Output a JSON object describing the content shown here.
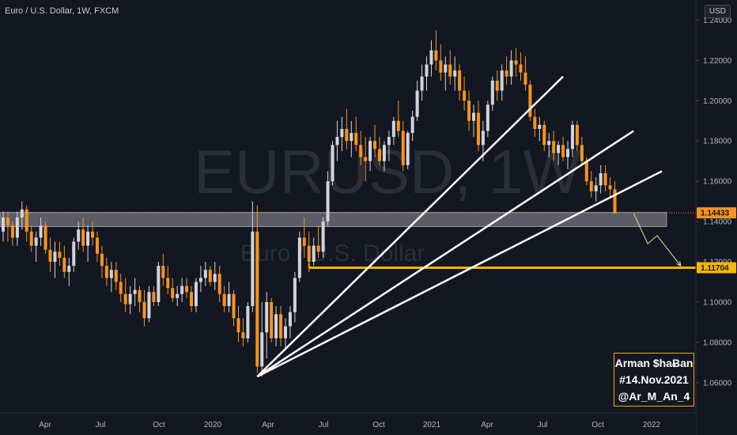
{
  "header": {
    "symbol_title": "Euro / U.S. Dollar, 1W, FXCM",
    "currency_button": "USD"
  },
  "watermark": {
    "main": "EURUSD, 1W",
    "sub": "Euro / U.S. Dollar"
  },
  "signature": {
    "line1": "Arman $haɃan",
    "line2": "#14.Nov.2021",
    "line3": "@Ar_M_An_4"
  },
  "colors": {
    "background": "#131722",
    "up_candle": "#d1d4dc",
    "down_candle": "#f7931e",
    "support_line": "#f7b500",
    "zone_fill": "#9598a1",
    "trendline": "#ffffff",
    "arrow": "#e8e89a"
  },
  "chart_data": {
    "type": "candlestick",
    "timeframe": "1W",
    "symbol": "EURUSD",
    "ylim": [
      1.045,
      1.25
    ],
    "y_ticks": [
      "1.24000",
      "1.22000",
      "1.20000",
      "1.18000",
      "1.16000",
      "1.14000",
      "1.12000",
      "1.10000",
      "1.08000",
      "1.06000"
    ],
    "x_ticks": [
      "Apr",
      "Jul",
      "Oct",
      "2020",
      "Apr",
      "Jul",
      "Oct",
      "2021",
      "Apr",
      "Jul",
      "Oct",
      "2022"
    ],
    "price_labels": [
      {
        "label": "1.14433",
        "value": 1.14433,
        "style": "last-price"
      },
      {
        "label": "1.11704",
        "value": 1.11704,
        "style": "support"
      }
    ],
    "zone": {
      "from": 1.1375,
      "to": 1.1445,
      "start_week": 0,
      "end_week": 141
    },
    "support_line": {
      "value": 1.11704,
      "start_week": 65,
      "end_week": 155
    },
    "trendlines": [
      {
        "start_week": 54,
        "start_price": 1.063,
        "end_week": 119,
        "end_price": 1.212
      },
      {
        "start_week": 54,
        "start_price": 1.063,
        "end_week": 134,
        "end_price": 1.185
      },
      {
        "start_week": 54,
        "start_price": 1.063,
        "end_week": 140,
        "end_price": 1.165
      }
    ],
    "projection_arrow": [
      {
        "week": 134,
        "price": 1.144
      },
      {
        "week": 137,
        "price": 1.129
      },
      {
        "week": 139,
        "price": 1.133
      },
      {
        "week": 144,
        "price": 1.118
      }
    ],
    "ohlc": [
      [
        1.135,
        1.145,
        1.13,
        1.142
      ],
      [
        1.142,
        1.145,
        1.13,
        1.138
      ],
      [
        1.138,
        1.14,
        1.128,
        1.132
      ],
      [
        1.132,
        1.145,
        1.128,
        1.142
      ],
      [
        1.142,
        1.15,
        1.136,
        1.146
      ],
      [
        1.146,
        1.148,
        1.13,
        1.135
      ],
      [
        1.135,
        1.138,
        1.125,
        1.128
      ],
      [
        1.128,
        1.135,
        1.12,
        1.132
      ],
      [
        1.132,
        1.142,
        1.128,
        1.138
      ],
      [
        1.138,
        1.14,
        1.124,
        1.126
      ],
      [
        1.126,
        1.132,
        1.115,
        1.12
      ],
      [
        1.12,
        1.13,
        1.112,
        1.125
      ],
      [
        1.125,
        1.13,
        1.118,
        1.122
      ],
      [
        1.122,
        1.128,
        1.112,
        1.115
      ],
      [
        1.115,
        1.122,
        1.108,
        1.118
      ],
      [
        1.118,
        1.132,
        1.115,
        1.13
      ],
      [
        1.13,
        1.14,
        1.126,
        1.136
      ],
      [
        1.136,
        1.142,
        1.125,
        1.128
      ],
      [
        1.128,
        1.138,
        1.12,
        1.135
      ],
      [
        1.135,
        1.14,
        1.128,
        1.132
      ],
      [
        1.132,
        1.135,
        1.12,
        1.124
      ],
      [
        1.124,
        1.128,
        1.112,
        1.118
      ],
      [
        1.118,
        1.122,
        1.108,
        1.112
      ],
      [
        1.112,
        1.12,
        1.105,
        1.116
      ],
      [
        1.116,
        1.12,
        1.106,
        1.11
      ],
      [
        1.11,
        1.114,
        1.1,
        1.104
      ],
      [
        1.104,
        1.112,
        1.095,
        1.099
      ],
      [
        1.099,
        1.108,
        1.094,
        1.104
      ],
      [
        1.104,
        1.112,
        1.098,
        1.106
      ],
      [
        1.106,
        1.108,
        1.095,
        1.1
      ],
      [
        1.1,
        1.106,
        1.088,
        1.092
      ],
      [
        1.092,
        1.108,
        1.09,
        1.105
      ],
      [
        1.105,
        1.108,
        1.098,
        1.1
      ],
      [
        1.1,
        1.12,
        1.098,
        1.118
      ],
      [
        1.118,
        1.124,
        1.108,
        1.112
      ],
      [
        1.112,
        1.118,
        1.104,
        1.107
      ],
      [
        1.107,
        1.112,
        1.1,
        1.102
      ],
      [
        1.102,
        1.108,
        1.098,
        1.104
      ],
      [
        1.104,
        1.112,
        1.1,
        1.108
      ],
      [
        1.108,
        1.112,
        1.102,
        1.105
      ],
      [
        1.105,
        1.108,
        1.095,
        1.098
      ],
      [
        1.098,
        1.112,
        1.095,
        1.11
      ],
      [
        1.11,
        1.118,
        1.105,
        1.112
      ],
      [
        1.112,
        1.12,
        1.108,
        1.116
      ],
      [
        1.116,
        1.118,
        1.108,
        1.11
      ],
      [
        1.11,
        1.12,
        1.106,
        1.114
      ],
      [
        1.114,
        1.118,
        1.1,
        1.104
      ],
      [
        1.104,
        1.108,
        1.095,
        1.098
      ],
      [
        1.098,
        1.11,
        1.095,
        1.104
      ],
      [
        1.104,
        1.106,
        1.088,
        1.092
      ],
      [
        1.092,
        1.098,
        1.08,
        1.085
      ],
      [
        1.085,
        1.092,
        1.078,
        1.082
      ],
      [
        1.082,
        1.1,
        1.08,
        1.098
      ],
      [
        1.098,
        1.15,
        1.095,
        1.135
      ],
      [
        1.135,
        1.148,
        1.065,
        1.068
      ],
      [
        1.068,
        1.1,
        1.063,
        1.085
      ],
      [
        1.085,
        1.105,
        1.072,
        1.1
      ],
      [
        1.1,
        1.102,
        1.08,
        1.082
      ],
      [
        1.082,
        1.098,
        1.078,
        1.094
      ],
      [
        1.094,
        1.098,
        1.078,
        1.082
      ],
      [
        1.082,
        1.092,
        1.076,
        1.088
      ],
      [
        1.088,
        1.098,
        1.082,
        1.095
      ],
      [
        1.095,
        1.115,
        1.09,
        1.112
      ],
      [
        1.112,
        1.135,
        1.11,
        1.132
      ],
      [
        1.132,
        1.142,
        1.122,
        1.128
      ],
      [
        1.128,
        1.135,
        1.115,
        1.12
      ],
      [
        1.12,
        1.132,
        1.118,
        1.128
      ],
      [
        1.128,
        1.138,
        1.122,
        1.125
      ],
      [
        1.125,
        1.142,
        1.122,
        1.14
      ],
      [
        1.14,
        1.165,
        1.138,
        1.16
      ],
      [
        1.16,
        1.18,
        1.158,
        1.178
      ],
      [
        1.178,
        1.19,
        1.17,
        1.182
      ],
      [
        1.182,
        1.192,
        1.175,
        1.186
      ],
      [
        1.186,
        1.196,
        1.176,
        1.18
      ],
      [
        1.18,
        1.19,
        1.172,
        1.184
      ],
      [
        1.184,
        1.192,
        1.175,
        1.178
      ],
      [
        1.178,
        1.185,
        1.168,
        1.172
      ],
      [
        1.172,
        1.182,
        1.16,
        1.17
      ],
      [
        1.17,
        1.182,
        1.165,
        1.18
      ],
      [
        1.18,
        1.188,
        1.172,
        1.176
      ],
      [
        1.176,
        1.182,
        1.168,
        1.17
      ],
      [
        1.17,
        1.18,
        1.165,
        1.178
      ],
      [
        1.178,
        1.185,
        1.17,
        1.182
      ],
      [
        1.182,
        1.192,
        1.178,
        1.19
      ],
      [
        1.19,
        1.2,
        1.182,
        1.185
      ],
      [
        1.185,
        1.19,
        1.165,
        1.168
      ],
      [
        1.168,
        1.185,
        1.166,
        1.184
      ],
      [
        1.184,
        1.195,
        1.18,
        1.192
      ],
      [
        1.192,
        1.21,
        1.19,
        1.205
      ],
      [
        1.205,
        1.218,
        1.2,
        1.212
      ],
      [
        1.212,
        1.222,
        1.205,
        1.218
      ],
      [
        1.218,
        1.23,
        1.212,
        1.225
      ],
      [
        1.225,
        1.235,
        1.215,
        1.22
      ],
      [
        1.22,
        1.228,
        1.21,
        1.214
      ],
      [
        1.214,
        1.222,
        1.205,
        1.218
      ],
      [
        1.218,
        1.225,
        1.208,
        1.212
      ],
      [
        1.212,
        1.222,
        1.205,
        1.215
      ],
      [
        1.215,
        1.218,
        1.2,
        1.205
      ],
      [
        1.205,
        1.212,
        1.195,
        1.2
      ],
      [
        1.2,
        1.205,
        1.185,
        1.19
      ],
      [
        1.19,
        1.198,
        1.182,
        1.194
      ],
      [
        1.194,
        1.2,
        1.175,
        1.178
      ],
      [
        1.178,
        1.19,
        1.17,
        1.185
      ],
      [
        1.185,
        1.2,
        1.182,
        1.198
      ],
      [
        1.198,
        1.212,
        1.195,
        1.21
      ],
      [
        1.21,
        1.215,
        1.2,
        1.205
      ],
      [
        1.205,
        1.218,
        1.2,
        1.215
      ],
      [
        1.215,
        1.222,
        1.208,
        1.212
      ],
      [
        1.212,
        1.225,
        1.208,
        1.22
      ],
      [
        1.22,
        1.226,
        1.212,
        1.218
      ],
      [
        1.218,
        1.224,
        1.21,
        1.214
      ],
      [
        1.214,
        1.222,
        1.205,
        1.208
      ],
      [
        1.208,
        1.21,
        1.19,
        1.192
      ],
      [
        1.192,
        1.196,
        1.182,
        1.186
      ],
      [
        1.186,
        1.192,
        1.18,
        1.188
      ],
      [
        1.188,
        1.19,
        1.175,
        1.178
      ],
      [
        1.178,
        1.184,
        1.172,
        1.18
      ],
      [
        1.18,
        1.185,
        1.17,
        1.174
      ],
      [
        1.174,
        1.18,
        1.168,
        1.178
      ],
      [
        1.178,
        1.182,
        1.17,
        1.172
      ],
      [
        1.172,
        1.18,
        1.166,
        1.176
      ],
      [
        1.176,
        1.19,
        1.172,
        1.188
      ],
      [
        1.188,
        1.19,
        1.175,
        1.178
      ],
      [
        1.178,
        1.182,
        1.168,
        1.17
      ],
      [
        1.17,
        1.172,
        1.158,
        1.16
      ],
      [
        1.16,
        1.165,
        1.152,
        1.155
      ],
      [
        1.155,
        1.162,
        1.15,
        1.158
      ],
      [
        1.158,
        1.168,
        1.154,
        1.164
      ],
      [
        1.164,
        1.168,
        1.155,
        1.158
      ],
      [
        1.158,
        1.162,
        1.152,
        1.156
      ],
      [
        1.156,
        1.16,
        1.144,
        1.144
      ]
    ],
    "ohlc_start_week": 0
  }
}
